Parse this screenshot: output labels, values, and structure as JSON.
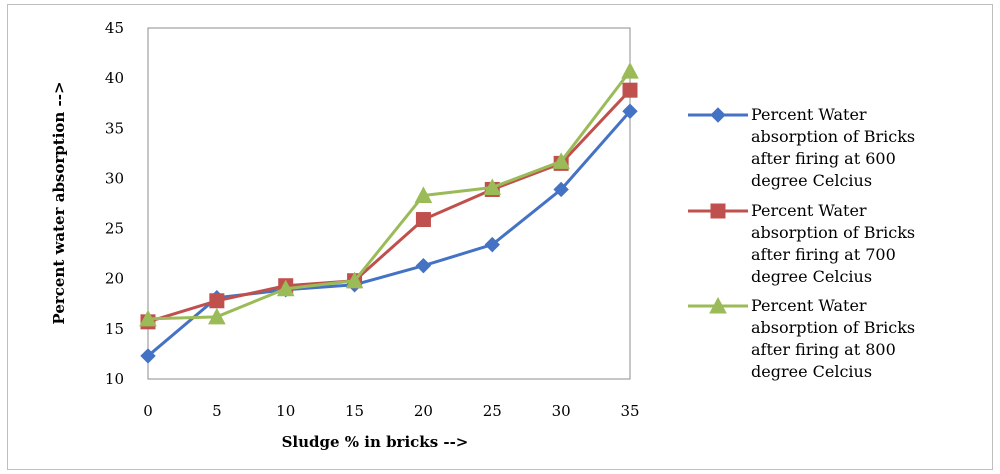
{
  "chart_data": {
    "type": "line",
    "title": "",
    "xlabel": "Sludge % in bricks -->",
    "ylabel": "Percent water absorption -->",
    "x": [
      0,
      5,
      10,
      15,
      20,
      25,
      30,
      35
    ],
    "x_tick_labels": [
      "0",
      "5",
      "10",
      "15",
      "20",
      "25",
      "30",
      "35"
    ],
    "y_tick_labels": [
      "10",
      "15",
      "20",
      "25",
      "30",
      "35",
      "40",
      "45"
    ],
    "ylim": [
      10,
      45
    ],
    "grid": false,
    "legend_position": "right",
    "series": [
      {
        "name": "Percent Water absorption of Bricks after firing at 600 degree Celcius",
        "legend_lines": [
          "Percent Water",
          "absorption of Bricks",
          "after firing  at 600",
          "degree Celcius"
        ],
        "color": "#4472c4",
        "marker": "diamond",
        "values": [
          12.3,
          18.1,
          18.9,
          19.4,
          21.3,
          23.4,
          28.9,
          36.7
        ]
      },
      {
        "name": "Percent Water absorption of Bricks after firing at 700 degree Celcius",
        "legend_lines": [
          "Percent Water",
          "absorption of Bricks",
          "after firing  at 700",
          "degree Celcius"
        ],
        "color": "#c0504d",
        "marker": "square",
        "values": [
          15.7,
          17.8,
          19.3,
          19.8,
          25.9,
          28.9,
          31.5,
          38.8
        ]
      },
      {
        "name": "Percent Water absorption of Bricks after firing at 800 degree Celcius",
        "legend_lines": [
          "Percent Water",
          "absorption of Bricks",
          "after firing  at 800",
          "degree Celcius"
        ],
        "color": "#9bbb59",
        "marker": "triangle",
        "values": [
          16.0,
          16.2,
          19.0,
          19.8,
          28.3,
          29.1,
          31.7,
          40.7
        ]
      }
    ]
  }
}
